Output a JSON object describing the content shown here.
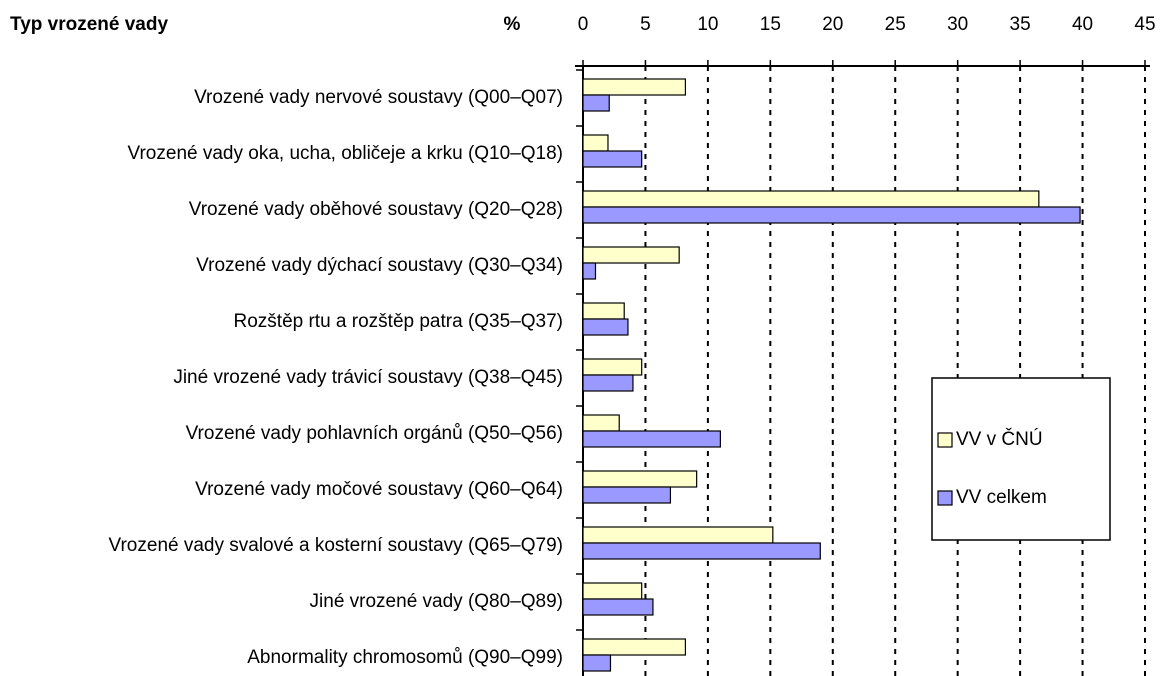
{
  "chart_data": {
    "type": "bar",
    "orientation": "horizontal",
    "y_axis_label": "Typ vrozené vady",
    "x_axis_label": "%",
    "categories": [
      "Vrozené vady nervové soustavy (Q00–Q07)",
      "Vrozené vady oka, ucha, obličeje a krku (Q10–Q18)",
      "Vrozené vady oběhové soustavy (Q20–Q28)",
      "Vrozené vady dýchací soustavy (Q30–Q34)",
      "Rozštěp rtu a rozštěp patra (Q35–Q37)",
      "Jiné vrozené vady trávicí soustavy (Q38–Q45)",
      "Vrozené vady pohlavních orgánů (Q50–Q56)",
      "Vrozené vady močové soustavy (Q60–Q64)",
      "Vrozené vady svalové a kosterní soustavy (Q65–Q79)",
      "Jiné vrozené vady (Q80–Q89)",
      "Abnormality chromosomů (Q90–Q99)"
    ],
    "series": [
      {
        "name": "VV v ČNÚ",
        "color": "#ffffcc",
        "values": [
          8.2,
          2.0,
          36.5,
          7.7,
          3.3,
          4.7,
          2.9,
          9.1,
          15.2,
          4.7,
          8.2
        ]
      },
      {
        "name": "VV celkem",
        "color": "#9999ff",
        "values": [
          2.1,
          4.7,
          39.8,
          1.0,
          3.6,
          4.0,
          11.0,
          7.0,
          19.0,
          5.6,
          2.2
        ]
      }
    ],
    "xlim": [
      0,
      45
    ],
    "xticks": [
      0,
      5,
      10,
      15,
      20,
      25,
      30,
      35,
      40,
      45
    ],
    "grid": true,
    "legend": "right"
  }
}
